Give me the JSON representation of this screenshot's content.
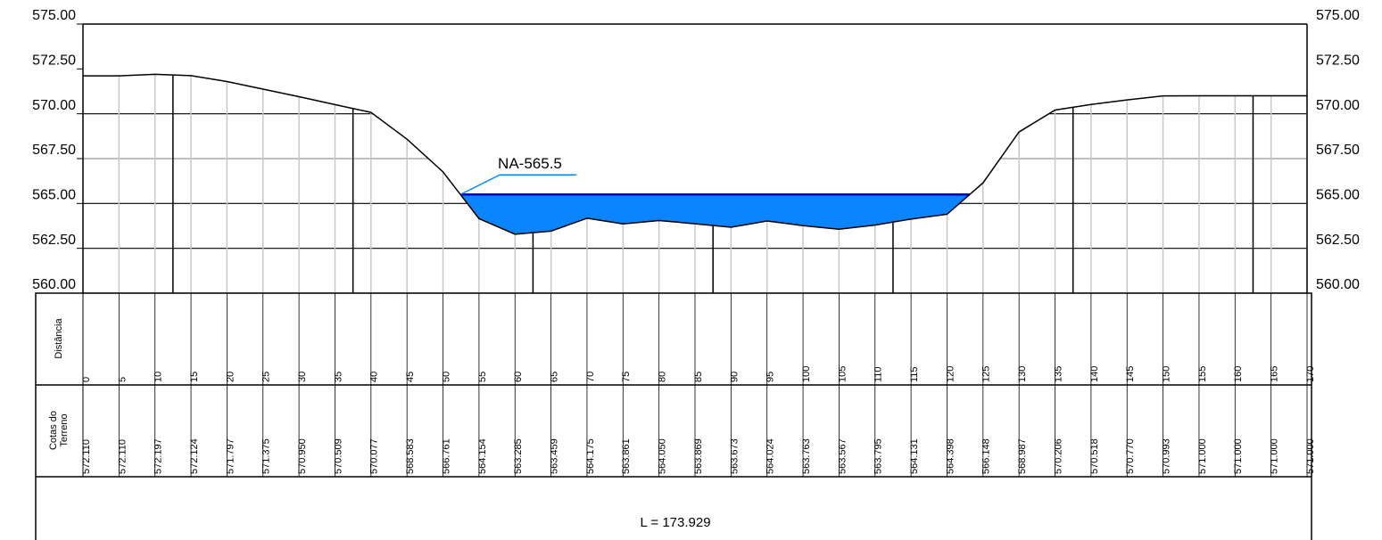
{
  "chart_data": {
    "type": "profile",
    "x": [
      0,
      5,
      10,
      15,
      20,
      25,
      30,
      35,
      40,
      45,
      50,
      55,
      60,
      65,
      70,
      75,
      80,
      85,
      90,
      95,
      100,
      105,
      110,
      115,
      120,
      125,
      130,
      135,
      140,
      145,
      150,
      155,
      160,
      165,
      170
    ],
    "values": [
      572.11,
      572.11,
      572.197,
      572.124,
      571.797,
      571.375,
      570.95,
      570.509,
      570.077,
      568.583,
      566.761,
      564.154,
      563.285,
      563.459,
      564.175,
      563.861,
      564.05,
      563.869,
      563.673,
      564.024,
      563.763,
      563.567,
      563.795,
      564.131,
      564.398,
      566.148,
      568.987,
      570.206,
      570.518,
      570.77,
      570.993,
      571.0,
      571.0,
      571.0,
      571.0
    ],
    "value_labels": [
      "572.110",
      "572.110",
      "572.197",
      "572.124",
      "571.797",
      "571.375",
      "570.950",
      "570.509",
      "570.077",
      "568.583",
      "566.761",
      "564.154",
      "563.285",
      "563.459",
      "564.175",
      "563.861",
      "564.050",
      "563.869",
      "563.673",
      "564.024",
      "563.763",
      "563.567",
      "563.795",
      "564.131",
      "564.398",
      "566.148",
      "568.987",
      "570.206",
      "570.518",
      "570.770",
      "570.993",
      "571.000",
      "571.000",
      "571.000",
      "571.000"
    ],
    "xlim": [
      0,
      170
    ],
    "ylim": [
      560,
      575
    ],
    "yticks": [
      {
        "value": 560,
        "label": "560.00"
      },
      {
        "value": 562.5,
        "label": "562.50"
      },
      {
        "value": 565,
        "label": "565.00"
      },
      {
        "value": 567.5,
        "label": "567.50"
      },
      {
        "value": 570,
        "label": "570.00"
      },
      {
        "value": 572.5,
        "label": "572.50"
      },
      {
        "value": 575,
        "label": "575.00"
      }
    ],
    "xgrid_major": [
      12.5,
      37.5,
      62.5,
      87.5,
      112.5,
      137.5,
      162.5
    ],
    "water_level": 565.5,
    "water_label": "NA-565.5",
    "water_color": "#0a84ff",
    "line_color": "#000000",
    "row_labels": [
      "Distância",
      [
        "Cotas do",
        "Terreno"
      ]
    ],
    "length_label": "L = 173.929"
  }
}
